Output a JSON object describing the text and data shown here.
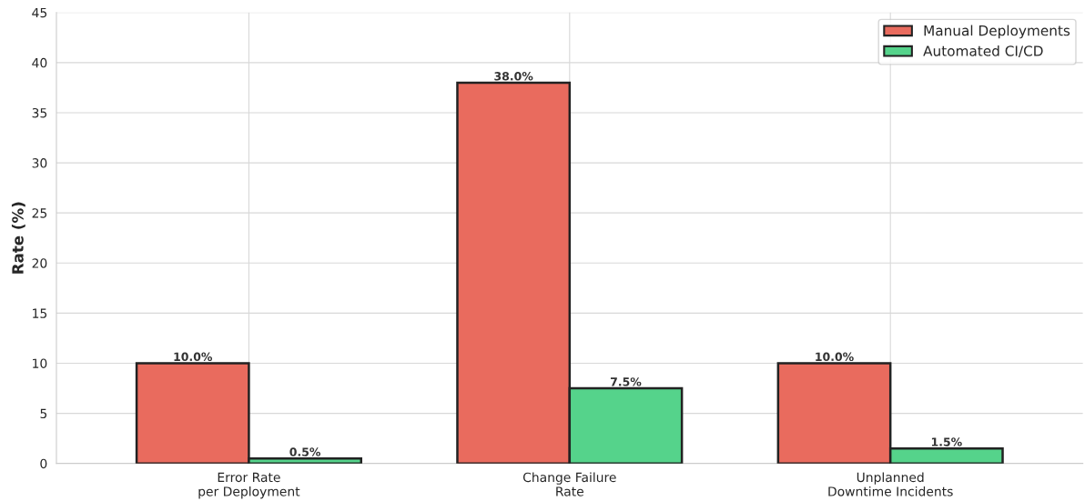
{
  "chart_data": {
    "type": "bar",
    "ylabel": "Rate (%)",
    "categories": [
      "Error Rate\nper Deployment",
      "Change Failure\nRate",
      "Unplanned\nDowntime Incidents"
    ],
    "series": [
      {
        "name": "Manual Deployments",
        "color": "#e96b5e",
        "values": [
          10.0,
          38.0,
          10.0
        ],
        "value_labels": [
          "10.0%",
          "38.0%",
          "10.0%"
        ]
      },
      {
        "name": "Automated CI/CD",
        "color": "#55d38b",
        "values": [
          0.5,
          7.5,
          1.5
        ],
        "value_labels": [
          "0.5%",
          "7.5%",
          "1.5%"
        ]
      }
    ],
    "ylim": [
      0,
      45
    ],
    "yticks": [
      0,
      5,
      10,
      15,
      20,
      25,
      30,
      35,
      40,
      45
    ],
    "grid": true,
    "legend": "top right"
  }
}
